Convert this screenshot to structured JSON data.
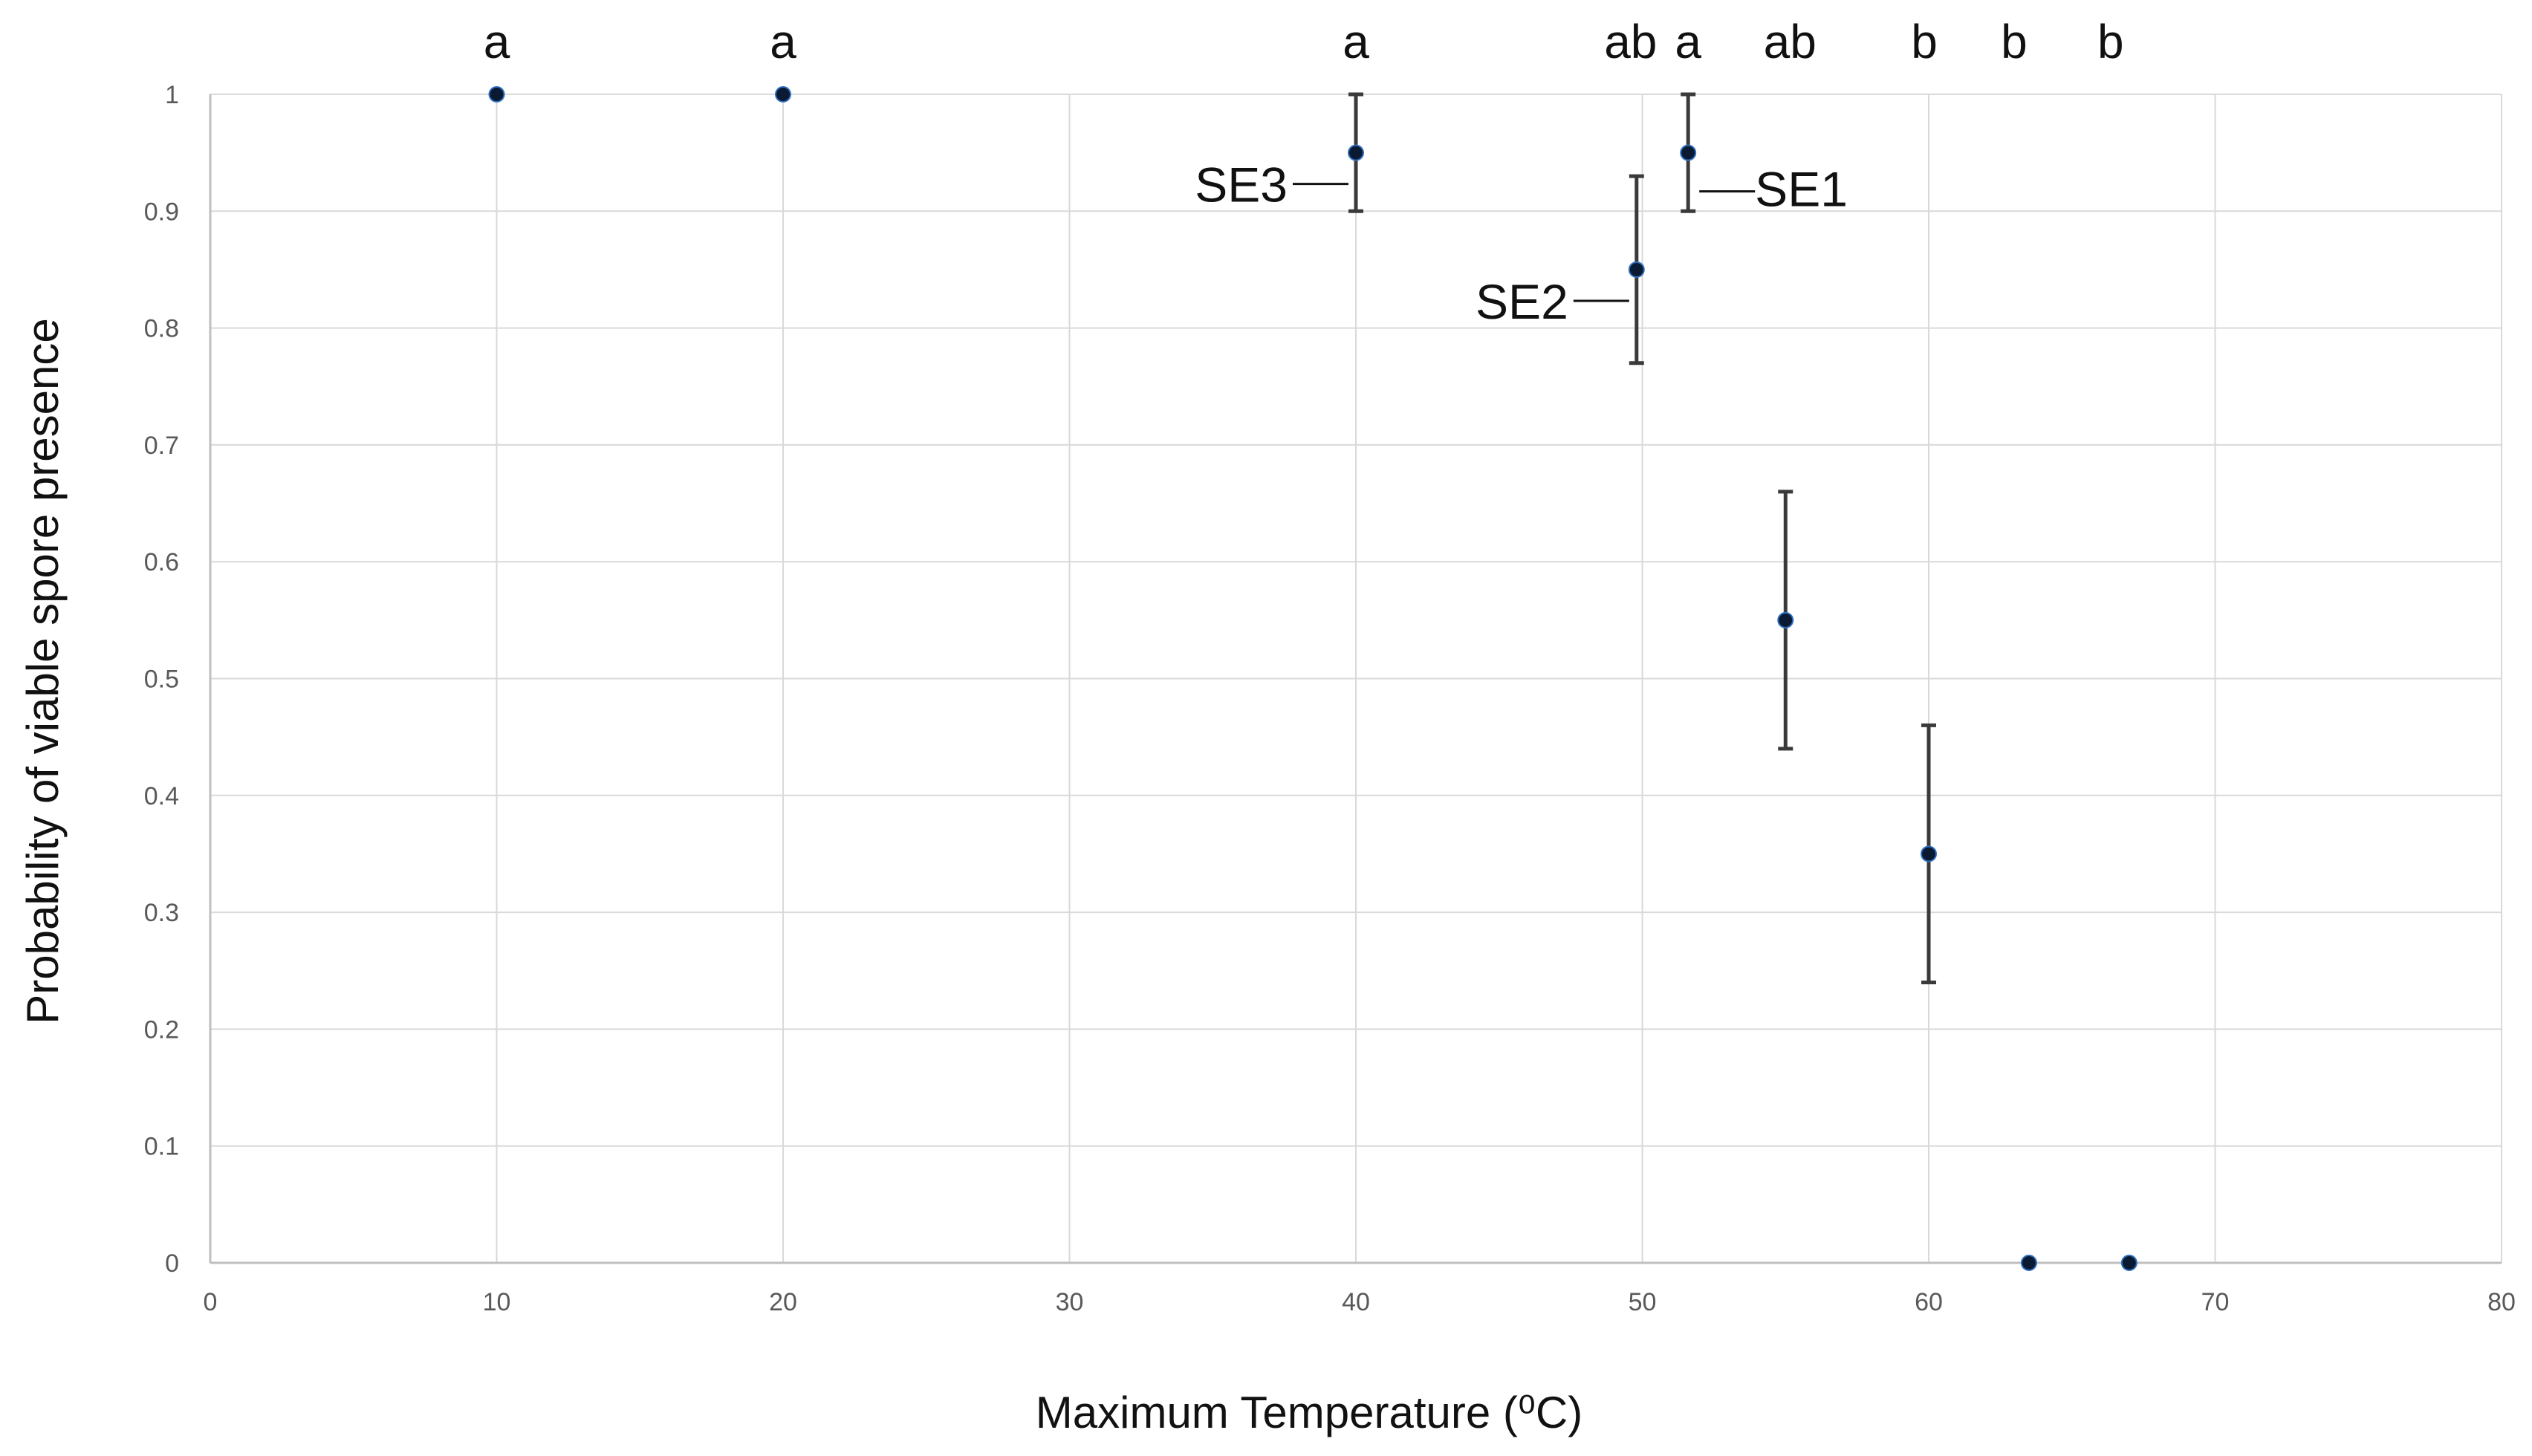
{
  "chart_data": {
    "type": "scatter",
    "title": "",
    "xlabel": "Maximum Temperature  (⁰C)",
    "ylabel": "Probability of viable spore  presence",
    "xlim": [
      0,
      80
    ],
    "ylim": [
      0,
      1
    ],
    "x_ticks": [
      0,
      10,
      20,
      30,
      40,
      50,
      60,
      70,
      80
    ],
    "y_ticks": [
      0,
      0.1,
      0.2,
      0.3,
      0.4,
      0.5,
      0.6,
      0.7,
      0.8,
      0.9,
      1
    ],
    "x_tick_labels": [
      "0",
      "10",
      "20",
      "30",
      "40",
      "50",
      "60",
      "70",
      "80"
    ],
    "y_tick_labels": [
      "0",
      "0.1",
      "0.2",
      "0.3",
      "0.4",
      "0.5",
      "0.6",
      "0.7",
      "0.8",
      "0.9",
      "1"
    ],
    "grid": true,
    "points": [
      {
        "x": 10,
        "y": 1.0,
        "error": null,
        "letter": "a"
      },
      {
        "x": 20,
        "y": 1.0,
        "error": null,
        "letter": "a"
      },
      {
        "x": 40,
        "y": 0.95,
        "error": 0.05,
        "letter": "a",
        "label": "SE3"
      },
      {
        "x": 49.8,
        "y": 0.85,
        "error": 0.08,
        "letter": "ab",
        "label": "SE2"
      },
      {
        "x": 51.6,
        "y": 0.95,
        "error": 0.05,
        "letter": "a",
        "label": "SE1"
      },
      {
        "x": 55,
        "y": 0.55,
        "error": 0.11,
        "letter": "ab"
      },
      {
        "x": 60,
        "y": 0.35,
        "error": 0.11,
        "letter": "b"
      },
      {
        "x": 63.5,
        "y": 0.0,
        "error": null,
        "letter": "b"
      },
      {
        "x": 67,
        "y": 0.0,
        "error": null,
        "letter": "b"
      }
    ]
  }
}
